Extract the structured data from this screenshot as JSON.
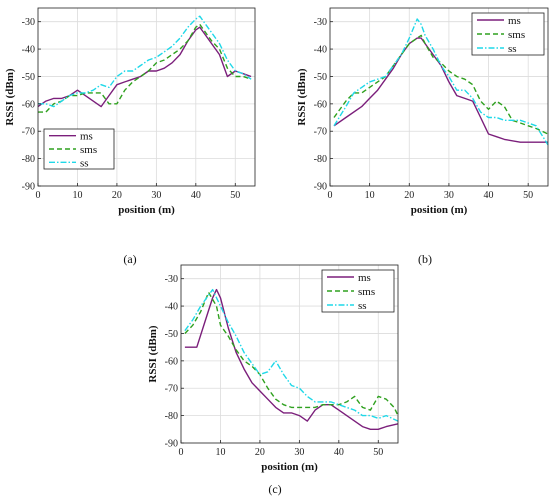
{
  "colors": {
    "ms": "#7b1f7b",
    "sms": "#2ea01e",
    "ss": "#1fd8e8"
  },
  "chart_data": [
    {
      "type": "line",
      "panel_label": "(a)",
      "xlabel": "position (m)",
      "ylabel": "RSSI (dBm)",
      "xlim": [
        0,
        55
      ],
      "ylim": [
        -90,
        -25
      ],
      "xticks": [
        0,
        10,
        20,
        30,
        40,
        50
      ],
      "yticks": [
        -90,
        -80,
        -70,
        -60,
        -50,
        -40,
        -30
      ],
      "grid": true,
      "legend_position": "bottom-left",
      "series": [
        {
          "name": "ms",
          "style": "solid",
          "x": [
            0,
            2,
            4,
            6,
            8,
            10,
            12,
            14,
            16,
            18,
            20,
            22,
            24,
            26,
            28,
            30,
            32,
            34,
            36,
            38,
            40,
            41,
            42,
            44,
            46,
            48,
            50,
            52,
            54
          ],
          "y": [
            -61,
            -59,
            -58,
            -58,
            -57,
            -55,
            -57,
            -59,
            -61,
            -57,
            -53,
            -52,
            -51,
            -50,
            -48,
            -48,
            -47,
            -45,
            -42,
            -37,
            -33,
            -32,
            -34,
            -38,
            -42,
            -50,
            -48,
            -49,
            -50
          ]
        },
        {
          "name": "sms",
          "style": "dashed",
          "x": [
            0,
            2,
            4,
            6,
            8,
            10,
            12,
            14,
            16,
            18,
            20,
            22,
            24,
            26,
            28,
            30,
            32,
            34,
            36,
            38,
            40,
            41,
            42,
            44,
            46,
            48,
            50,
            52,
            54
          ],
          "y": [
            -63,
            -63,
            -60,
            -59,
            -57,
            -57,
            -56,
            -56,
            -56,
            -60,
            -60,
            -55,
            -52,
            -50,
            -48,
            -45,
            -44,
            -42,
            -40,
            -37,
            -32,
            -31,
            -33,
            -37,
            -40,
            -47,
            -50,
            -50,
            -51
          ]
        },
        {
          "name": "ss",
          "style": "dashdot",
          "x": [
            0,
            2,
            4,
            6,
            8,
            10,
            12,
            14,
            16,
            18,
            20,
            22,
            24,
            26,
            28,
            30,
            32,
            34,
            36,
            38,
            40,
            41,
            42,
            44,
            46,
            48,
            50,
            52,
            54
          ],
          "y": [
            -60,
            -60,
            -61,
            -59,
            -57,
            -56,
            -56,
            -55,
            -53,
            -54,
            -50,
            -48,
            -48,
            -46,
            -44,
            -43,
            -41,
            -39,
            -36,
            -32,
            -29,
            -28,
            -30,
            -34,
            -38,
            -44,
            -48,
            -49,
            -51
          ]
        }
      ]
    },
    {
      "type": "line",
      "panel_label": "(b)",
      "xlabel": "position (m)",
      "ylabel": "RSSI (dBm)",
      "xlim": [
        0,
        55
      ],
      "ylim": [
        -90,
        -25
      ],
      "xticks": [
        0,
        10,
        20,
        30,
        40,
        50
      ],
      "yticks": [
        -90,
        -80,
        -70,
        -60,
        -50,
        -40,
        -30
      ],
      "grid": true,
      "legend_position": "top-right",
      "series": [
        {
          "name": "ms",
          "style": "solid",
          "x": [
            1,
            4,
            8,
            10,
            12,
            14,
            16,
            18,
            20,
            22,
            23,
            24,
            26,
            28,
            30,
            32,
            34,
            36,
            38,
            40,
            42,
            44,
            48,
            50,
            52,
            55
          ],
          "y": [
            -68,
            -65,
            -61,
            -58,
            -55,
            -51,
            -47,
            -42,
            -38,
            -36,
            -36,
            -38,
            -42,
            -46,
            -52,
            -57,
            -58,
            -59,
            -65,
            -71,
            -72,
            -73,
            -74,
            -74,
            -74,
            -74
          ]
        },
        {
          "name": "sms",
          "style": "dashed",
          "x": [
            1,
            4,
            6,
            8,
            10,
            12,
            14,
            16,
            18,
            20,
            22,
            23,
            24,
            26,
            28,
            30,
            32,
            34,
            36,
            38,
            40,
            42,
            44,
            46,
            48,
            50,
            52,
            55
          ],
          "y": [
            -65,
            -59,
            -56,
            -56,
            -54,
            -52,
            -50,
            -46,
            -42,
            -38,
            -36,
            -35,
            -38,
            -43,
            -45,
            -48,
            -50,
            -51,
            -53,
            -59,
            -62,
            -59,
            -61,
            -66,
            -67,
            -68,
            -69,
            -71
          ]
        },
        {
          "name": "ss",
          "style": "dashdot",
          "x": [
            1,
            4,
            6,
            8,
            10,
            12,
            14,
            16,
            18,
            20,
            22,
            23,
            24,
            26,
            28,
            30,
            32,
            34,
            36,
            38,
            40,
            42,
            44,
            46,
            48,
            50,
            52,
            55
          ],
          "y": [
            -68,
            -61,
            -56,
            -54,
            -52,
            -51,
            -50,
            -46,
            -42,
            -36,
            -29,
            -31,
            -35,
            -40,
            -46,
            -50,
            -55,
            -55,
            -58,
            -63,
            -65,
            -65,
            -66,
            -66,
            -66,
            -67,
            -68,
            -75
          ]
        }
      ]
    },
    {
      "type": "line",
      "panel_label": "(c)",
      "xlabel": "position (m)",
      "ylabel": "RSSI (dBm)",
      "xlim": [
        0,
        55
      ],
      "ylim": [
        -90,
        -25
      ],
      "xticks": [
        0,
        10,
        20,
        30,
        40,
        50
      ],
      "yticks": [
        -90,
        -80,
        -70,
        -60,
        -50,
        -40,
        -30
      ],
      "grid": true,
      "legend_position": "top-right",
      "series": [
        {
          "name": "ms",
          "style": "solid",
          "x": [
            1,
            4,
            6,
            8,
            9,
            10,
            12,
            14,
            16,
            18,
            20,
            22,
            24,
            26,
            28,
            30,
            32,
            34,
            36,
            38,
            40,
            42,
            44,
            46,
            48,
            50,
            52,
            55
          ],
          "y": [
            -55,
            -55,
            -46,
            -37,
            -34,
            -37,
            -48,
            -57,
            -63,
            -68,
            -71,
            -74,
            -77,
            -79,
            -79,
            -80,
            -82,
            -78,
            -76,
            -76,
            -78,
            -80,
            -82,
            -84,
            -85,
            -85,
            -84,
            -83
          ]
        },
        {
          "name": "sms",
          "style": "dashed",
          "x": [
            1,
            3,
            5,
            7,
            9,
            10,
            12,
            14,
            16,
            18,
            20,
            22,
            24,
            26,
            28,
            30,
            32,
            34,
            36,
            38,
            40,
            42,
            44,
            46,
            48,
            50,
            52,
            54,
            55
          ],
          "y": [
            -50,
            -47,
            -42,
            -35,
            -40,
            -47,
            -51,
            -56,
            -60,
            -62,
            -65,
            -70,
            -74,
            -76,
            -77,
            -77,
            -77,
            -77,
            -76,
            -76,
            -76,
            -75,
            -73,
            -77,
            -78,
            -73,
            -74,
            -77,
            -80
          ]
        },
        {
          "name": "ss",
          "style": "dashdot",
          "x": [
            1,
            3,
            5,
            7,
            8,
            10,
            12,
            14,
            16,
            18,
            20,
            22,
            24,
            26,
            28,
            30,
            32,
            34,
            36,
            38,
            40,
            42,
            44,
            46,
            48,
            50,
            52,
            55
          ],
          "y": [
            -49,
            -45,
            -40,
            -36,
            -34,
            -40,
            -46,
            -51,
            -57,
            -61,
            -65,
            -64,
            -60,
            -65,
            -69,
            -70,
            -73,
            -75,
            -75,
            -75,
            -76,
            -77,
            -78,
            -80,
            -80,
            -81,
            -80,
            -82
          ]
        }
      ]
    }
  ]
}
